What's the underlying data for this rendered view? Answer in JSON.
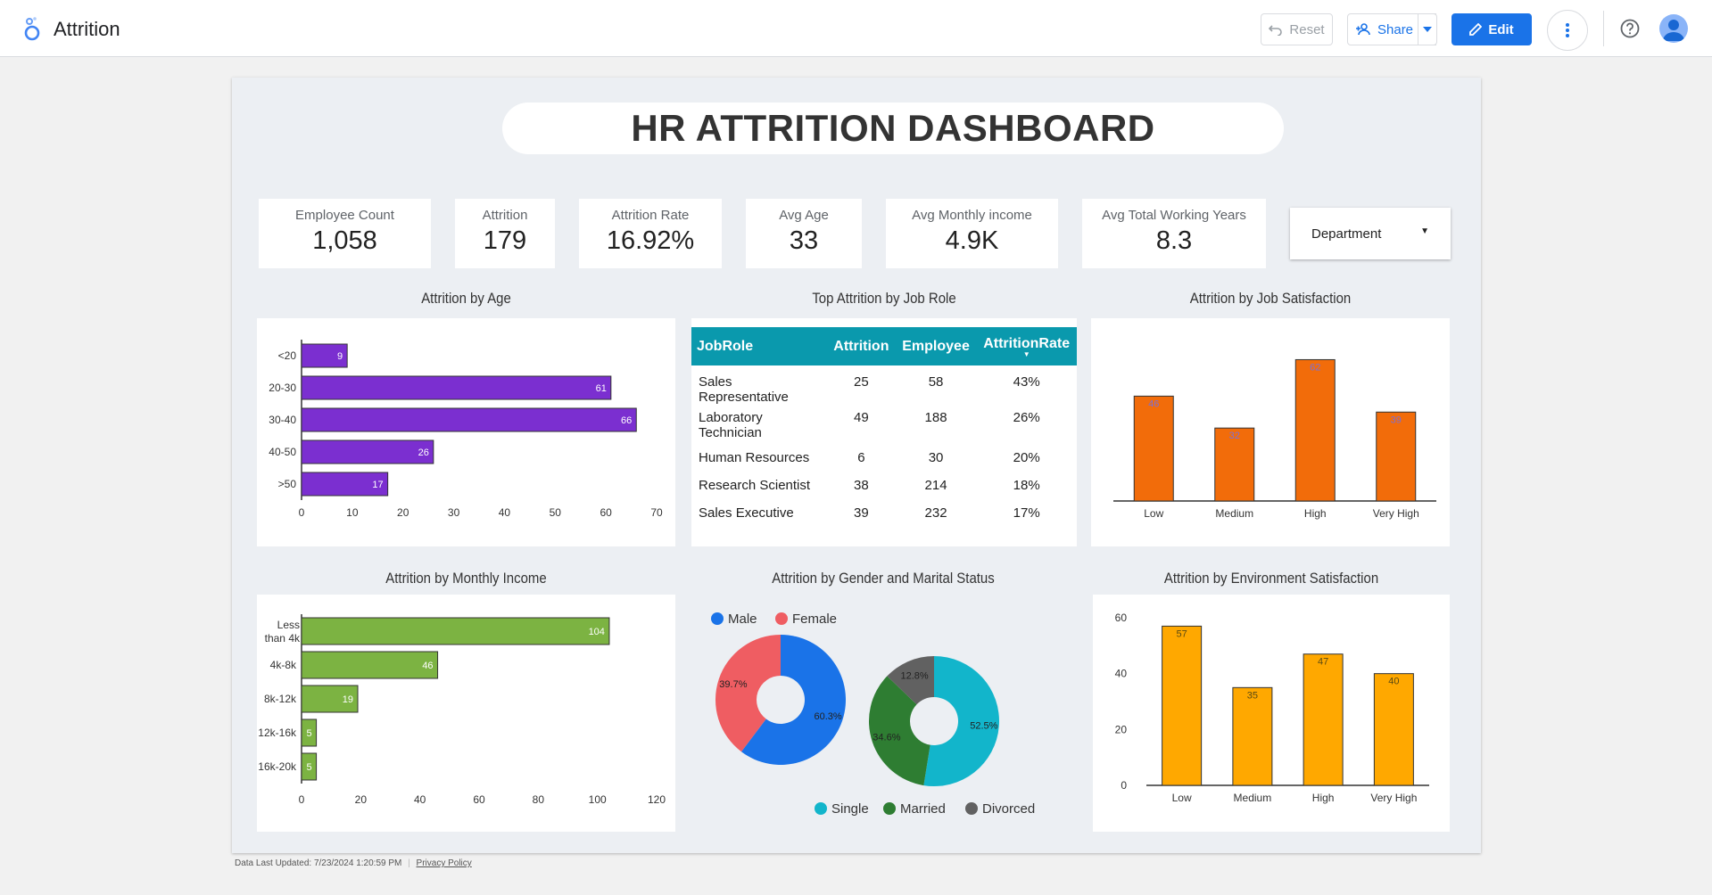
{
  "app": {
    "title": "Attrition"
  },
  "toolbar": {
    "reset_label": "Reset",
    "share_label": "Share",
    "edit_label": "Edit"
  },
  "dashboard": {
    "title": "HR ATTRITION DASHBOARD"
  },
  "kpis": [
    {
      "label": "Employee Count",
      "value": "1,058"
    },
    {
      "label": "Attrition",
      "value": "179"
    },
    {
      "label": "Attrition Rate",
      "value": "16.92%"
    },
    {
      "label": "Avg Age",
      "value": "33"
    },
    {
      "label": "Avg Monthly income",
      "value": "4.9K"
    },
    {
      "label": "Avg Total Working Years",
      "value": "8.3"
    }
  ],
  "filter": {
    "label": "Department"
  },
  "sections": {
    "age": "Attrition by Age",
    "jobrole": "Top Attrition by Job Role",
    "jobsat": "Attrition by Job Satisfaction",
    "income": "Attrition by Monthly Income",
    "gender": "Attrition by Gender and Marital Status",
    "envsat": "Attrition by Environment Satisfaction"
  },
  "job_table": {
    "headers": [
      "JobRole",
      "Attrition",
      "Employee",
      "AttritionRate"
    ],
    "rows": [
      {
        "role": "Sales Representative",
        "attrition": "25",
        "employee": "58",
        "rate": "43%"
      },
      {
        "role": "Laboratory Technician",
        "attrition": "49",
        "employee": "188",
        "rate": "26%"
      },
      {
        "role": "Human Resources",
        "attrition": "6",
        "employee": "30",
        "rate": "20%"
      },
      {
        "role": "Research Scientist",
        "attrition": "38",
        "employee": "214",
        "rate": "18%"
      },
      {
        "role": "Sales Executive",
        "attrition": "39",
        "employee": "232",
        "rate": "17%"
      }
    ]
  },
  "footer": {
    "updated": "Data Last Updated: 7/23/2024 1:20:59 PM",
    "privacy": "Privacy Policy"
  },
  "colors": {
    "purple": "#7b2fd0",
    "green": "#7cb342",
    "orange": "#f26c0a",
    "amber": "#ffa800",
    "teal": "#0a99ad",
    "blue": "#1a73e8"
  },
  "chart_data": [
    {
      "id": "age",
      "type": "bar",
      "orientation": "horizontal",
      "title": "Attrition by Age",
      "categories": [
        "<20",
        "20-30",
        "30-40",
        "40-50",
        ">50"
      ],
      "values": [
        9,
        61,
        66,
        26,
        17
      ],
      "xlim": [
        0,
        70
      ],
      "ticks": [
        0,
        10,
        20,
        30,
        40,
        50,
        60,
        70
      ]
    },
    {
      "id": "jobsat",
      "type": "bar",
      "title": "Attrition by Job Satisfaction",
      "categories": [
        "Low",
        "Medium",
        "High",
        "Very High"
      ],
      "values": [
        46,
        32,
        62,
        39
      ],
      "ylim": [
        0,
        70
      ]
    },
    {
      "id": "income",
      "type": "bar",
      "orientation": "horizontal",
      "title": "Attrition by Monthly Income",
      "categories": [
        "Less than 4k",
        "4k-8k",
        "8k-12k",
        "12k-16k",
        "16k-20k"
      ],
      "values": [
        104,
        46,
        19,
        5,
        5
      ],
      "xlim": [
        0,
        120
      ],
      "ticks": [
        0,
        20,
        40,
        60,
        80,
        100,
        120
      ]
    },
    {
      "id": "gender",
      "type": "pie",
      "donut": true,
      "title": "Attrition by Gender",
      "labels": [
        "Male",
        "Female"
      ],
      "values": [
        60.3,
        39.7
      ],
      "colors": [
        "#1a73e8",
        "#ef5d62"
      ]
    },
    {
      "id": "marital",
      "type": "pie",
      "donut": true,
      "title": "Attrition by Marital Status",
      "labels": [
        "Single",
        "Married",
        "Divorced"
      ],
      "values": [
        52.5,
        34.6,
        12.8
      ],
      "colors": [
        "#12b5cb",
        "#2e7d32",
        "#616161"
      ]
    },
    {
      "id": "envsat",
      "type": "bar",
      "title": "Attrition by Environment Satisfaction",
      "categories": [
        "Low",
        "Medium",
        "High",
        "Very High"
      ],
      "values": [
        57,
        35,
        47,
        40
      ],
      "ylim": [
        0,
        60
      ],
      "ticks": [
        0,
        20,
        40,
        60
      ]
    }
  ]
}
